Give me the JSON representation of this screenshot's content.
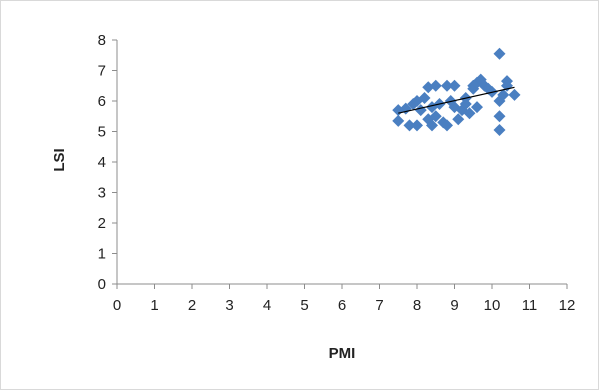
{
  "chart_data": {
    "type": "scatter",
    "xlabel": "PMI",
    "ylabel": "LSI",
    "xlim": [
      0,
      12
    ],
    "ylim": [
      0,
      8
    ],
    "x_ticks": [
      "0",
      "1",
      "2",
      "3",
      "4",
      "5",
      "6",
      "7",
      "8",
      "9",
      "10",
      "11",
      "12"
    ],
    "y_ticks": [
      "0",
      "1",
      "2",
      "3",
      "4",
      "5",
      "6",
      "7",
      "8"
    ],
    "grid": false,
    "legend": "none",
    "marker": "diamond",
    "marker_color": "#4a7fc1",
    "trendline": {
      "type": "linear",
      "x": [
        7.5,
        10.6
      ],
      "y": [
        5.6,
        6.45
      ],
      "color": "#000000"
    },
    "series": [
      {
        "points": [
          [
            7.5,
            5.7
          ],
          [
            7.5,
            5.35
          ],
          [
            7.7,
            5.75
          ],
          [
            7.8,
            5.2
          ],
          [
            7.9,
            5.9
          ],
          [
            8.0,
            5.2
          ],
          [
            8.0,
            6.0
          ],
          [
            8.1,
            5.7
          ],
          [
            8.2,
            6.1
          ],
          [
            8.3,
            5.4
          ],
          [
            8.3,
            6.45
          ],
          [
            8.4,
            5.2
          ],
          [
            8.4,
            5.8
          ],
          [
            8.5,
            6.5
          ],
          [
            8.5,
            5.5
          ],
          [
            8.6,
            5.9
          ],
          [
            8.7,
            5.3
          ],
          [
            8.8,
            6.5
          ],
          [
            8.8,
            5.2
          ],
          [
            8.9,
            6.0
          ],
          [
            9.0,
            5.8
          ],
          [
            9.0,
            6.5
          ],
          [
            9.1,
            5.4
          ],
          [
            9.2,
            5.7
          ],
          [
            9.3,
            6.1
          ],
          [
            9.3,
            5.9
          ],
          [
            9.4,
            5.6
          ],
          [
            9.5,
            6.4
          ],
          [
            9.5,
            6.5
          ],
          [
            9.6,
            6.6
          ],
          [
            9.6,
            5.8
          ],
          [
            9.7,
            6.7
          ],
          [
            9.8,
            6.5
          ],
          [
            9.9,
            6.4
          ],
          [
            10.0,
            6.3
          ],
          [
            10.2,
            7.55
          ],
          [
            10.2,
            5.5
          ],
          [
            10.2,
            5.05
          ],
          [
            10.2,
            6.0
          ],
          [
            10.3,
            6.2
          ],
          [
            10.4,
            6.65
          ],
          [
            10.4,
            6.5
          ],
          [
            10.6,
            6.2
          ]
        ]
      }
    ]
  }
}
